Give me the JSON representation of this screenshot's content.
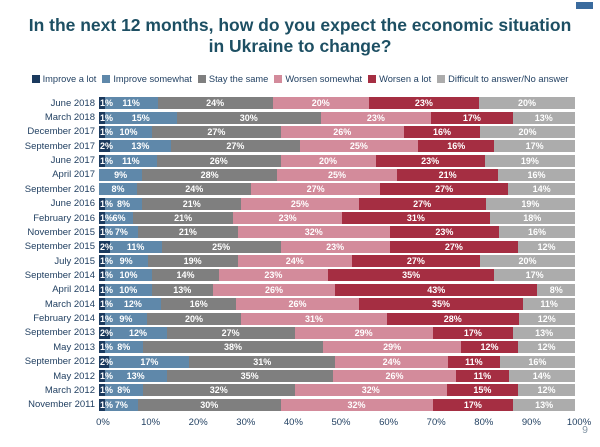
{
  "title": {
    "line1": "In the next 12 months, how do you expect the economic situation",
    "line2": "in Ukraine to change?"
  },
  "page_number": "9",
  "legend": [
    {
      "label": "Improve a lot",
      "color": "#1b3a5e"
    },
    {
      "label": "Improve somewhat",
      "color": "#5f88aa"
    },
    {
      "label": "Stay the same",
      "color": "#7f7f7f"
    },
    {
      "label": "Worsen somewhat",
      "color": "#d38b9b"
    },
    {
      "label": "Worsen a lot",
      "color": "#a52e42"
    },
    {
      "label": "Difficult to answer/No answer",
      "color": "#acacac"
    }
  ],
  "chart_data": {
    "type": "bar",
    "orientation": "horizontal",
    "stacked": true,
    "unit": "%",
    "title": "In the next 12 months, how do you expect the economic situation in Ukraine to change?",
    "xlim": [
      0,
      100
    ],
    "x_ticks": [
      "0%",
      "10%",
      "20%",
      "30%",
      "40%",
      "50%",
      "60%",
      "70%",
      "80%",
      "90%",
      "100%"
    ],
    "legend_position": "top",
    "grid": false,
    "categories": [
      "June 2018",
      "March 2018",
      "December 2017",
      "September 2017",
      "June 2017",
      "April 2017",
      "September 2016",
      "June 2016",
      "February 2016",
      "November 2015",
      "September 2015",
      "July 2015",
      "September 2014",
      "April 2014",
      "March 2014",
      "February 2014",
      "September 2013",
      "May 2013",
      "September 2012",
      "May 2012",
      "March 2012",
      "November 2011"
    ],
    "series": [
      {
        "name": "Improve a lot",
        "values": [
          1,
          1,
          1,
          2,
          1,
          0,
          0,
          1,
          1,
          1,
          2,
          1,
          1,
          1,
          1,
          1,
          2,
          1,
          2,
          1,
          1,
          1
        ]
      },
      {
        "name": "Improve somewhat",
        "values": [
          11,
          15,
          10,
          13,
          11,
          9,
          8,
          8,
          6,
          7,
          11,
          9,
          10,
          10,
          12,
          9,
          12,
          8,
          17,
          13,
          8,
          7
        ]
      },
      {
        "name": "Stay the same",
        "values": [
          24,
          30,
          27,
          27,
          26,
          28,
          24,
          21,
          21,
          21,
          25,
          19,
          14,
          13,
          16,
          20,
          27,
          38,
          31,
          35,
          32,
          30
        ]
      },
      {
        "name": "Worsen somewhat",
        "values": [
          20,
          23,
          26,
          25,
          20,
          25,
          27,
          25,
          23,
          32,
          23,
          24,
          23,
          26,
          26,
          31,
          29,
          29,
          24,
          26,
          32,
          32
        ]
      },
      {
        "name": "Worsen a lot",
        "values": [
          23,
          17,
          16,
          16,
          23,
          21,
          27,
          27,
          31,
          23,
          27,
          27,
          35,
          43,
          35,
          28,
          17,
          12,
          11,
          11,
          15,
          17
        ]
      },
      {
        "name": "Difficult to answer/No answer",
        "values": [
          20,
          13,
          20,
          17,
          19,
          16,
          14,
          19,
          18,
          16,
          12,
          20,
          17,
          8,
          11,
          12,
          13,
          12,
          16,
          14,
          12,
          13
        ]
      }
    ]
  }
}
